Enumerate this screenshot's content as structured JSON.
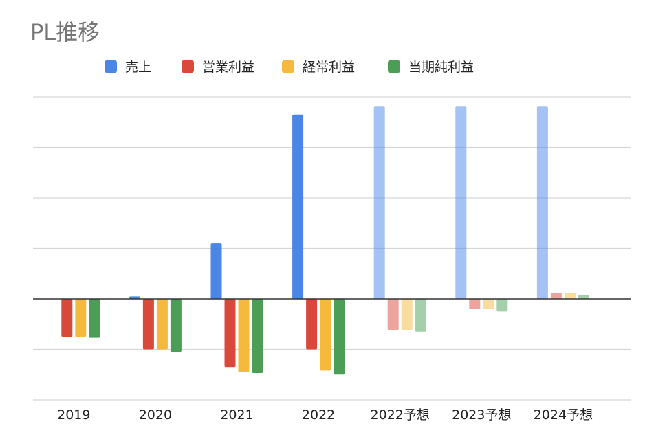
{
  "chart_data": {
    "type": "bar",
    "title": "PL推移",
    "xlabel": "",
    "ylabel": "",
    "categories": [
      "2019",
      "2020",
      "2021",
      "2022",
      "2022予想",
      "2023予想",
      "2024予想"
    ],
    "series": [
      {
        "name": "売上",
        "color": "#4a86e8",
        "values": [
          0,
          0.05,
          1.1,
          3.65,
          3.82,
          3.82,
          3.82
        ]
      },
      {
        "name": "営業利益",
        "color": "#d9493b",
        "values": [
          -0.75,
          -1.0,
          -1.35,
          -1.0,
          -0.62,
          -0.2,
          0.12
        ]
      },
      {
        "name": "経常利益",
        "color": "#f4b93d",
        "values": [
          -0.75,
          -1.0,
          -1.45,
          -1.42,
          -0.62,
          -0.2,
          0.12
        ]
      },
      {
        "name": "当期純利益",
        "color": "#4c9e56",
        "values": [
          -0.77,
          -1.05,
          -1.47,
          -1.5,
          -0.65,
          -0.25,
          0.08
        ]
      }
    ],
    "forecast_categories": [
      "2022予想",
      "2023予想",
      "2024予想"
    ],
    "ylim": [
      -2,
      4
    ],
    "grid": true,
    "gridlines": [
      -2,
      -1,
      0,
      1,
      2,
      3,
      4
    ],
    "legend": "top",
    "y_tick_labels_shown": false
  }
}
